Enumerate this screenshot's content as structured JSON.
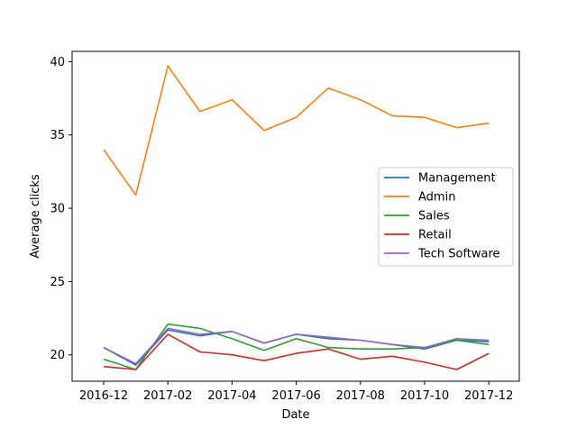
{
  "chart_data": {
    "type": "line",
    "title": "",
    "xlabel": "Date",
    "ylabel": "Average clicks",
    "x": [
      "2016-12",
      "2017-01",
      "2017-02",
      "2017-03",
      "2017-04",
      "2017-05",
      "2017-06",
      "2017-07",
      "2017-08",
      "2017-09",
      "2017-10",
      "2017-11",
      "2017-12"
    ],
    "xticks": [
      "2016-12",
      "2017-02",
      "2017-04",
      "2017-06",
      "2017-08",
      "2017-10",
      "2017-12"
    ],
    "yticks": [
      20,
      25,
      30,
      35,
      40
    ],
    "ylim": [
      18.2,
      40.7
    ],
    "grid": false,
    "legend_position": "center-right",
    "series": [
      {
        "name": "Management",
        "color": "#1f77b4",
        "values": [
          20.5,
          19.3,
          21.7,
          21.3,
          21.6,
          20.8,
          21.4,
          21.1,
          21.0,
          20.7,
          20.4,
          21.0,
          20.9
        ]
      },
      {
        "name": "Admin",
        "color": "#ff7f0e",
        "values": [
          34.0,
          30.9,
          39.7,
          36.6,
          37.4,
          35.3,
          36.2,
          38.2,
          37.4,
          36.3,
          36.2,
          35.5,
          35.8
        ]
      },
      {
        "name": "Sales",
        "color": "#2ca02c",
        "values": [
          19.7,
          19.0,
          22.1,
          21.8,
          21.1,
          20.3,
          21.1,
          20.5,
          20.4,
          20.4,
          20.5,
          21.0,
          20.7
        ]
      },
      {
        "name": "Retail",
        "color": "#d62728",
        "values": [
          19.2,
          19.0,
          21.4,
          20.2,
          20.0,
          19.6,
          20.1,
          20.4,
          19.7,
          19.9,
          19.5,
          19.0,
          20.1
        ]
      },
      {
        "name": "Tech Software",
        "color": "#9467bd",
        "values": [
          20.5,
          19.4,
          21.8,
          21.4,
          21.6,
          20.8,
          21.4,
          21.2,
          21.0,
          20.7,
          20.5,
          21.1,
          21.0
        ]
      }
    ]
  }
}
